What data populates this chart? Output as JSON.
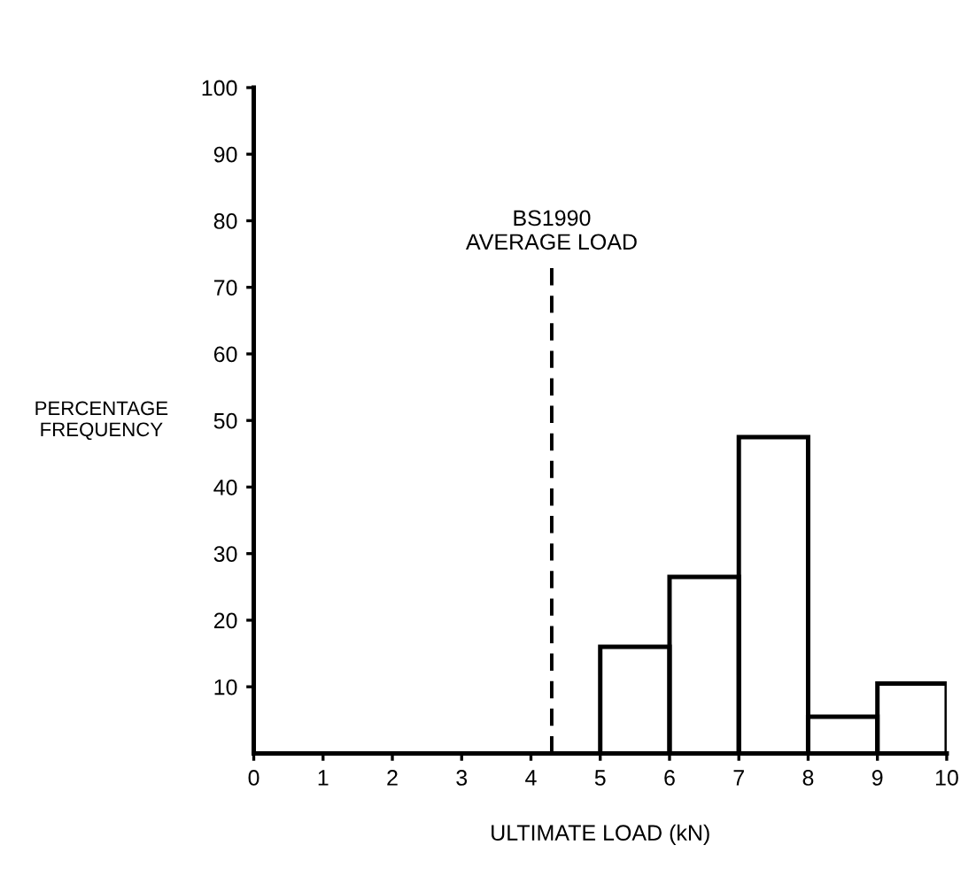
{
  "chart_data": {
    "type": "histogram",
    "xlabel": "ULTIMATE LOAD (kN)",
    "ylabel": "PERCENTAGE\nFREQUENCY",
    "bins": [
      5,
      6,
      7,
      8,
      9,
      10
    ],
    "values": [
      16,
      26.5,
      47.5,
      5.5,
      10.5
    ],
    "color": "#000000",
    "xlim": [
      0,
      10
    ],
    "xticks": [
      0,
      1,
      2,
      3,
      4,
      5,
      6,
      7,
      8,
      9,
      10
    ],
    "ylim": [
      0,
      100
    ],
    "yticks": [
      10,
      20,
      30,
      40,
      50,
      60,
      70,
      80,
      90,
      100
    ],
    "ref_lines": [
      {
        "axis": "x",
        "value": 4.3,
        "label": "BS1990\nAVERAGE LOAD",
        "line_style": "dashed",
        "color": "#000000"
      }
    ],
    "grid": false
  }
}
